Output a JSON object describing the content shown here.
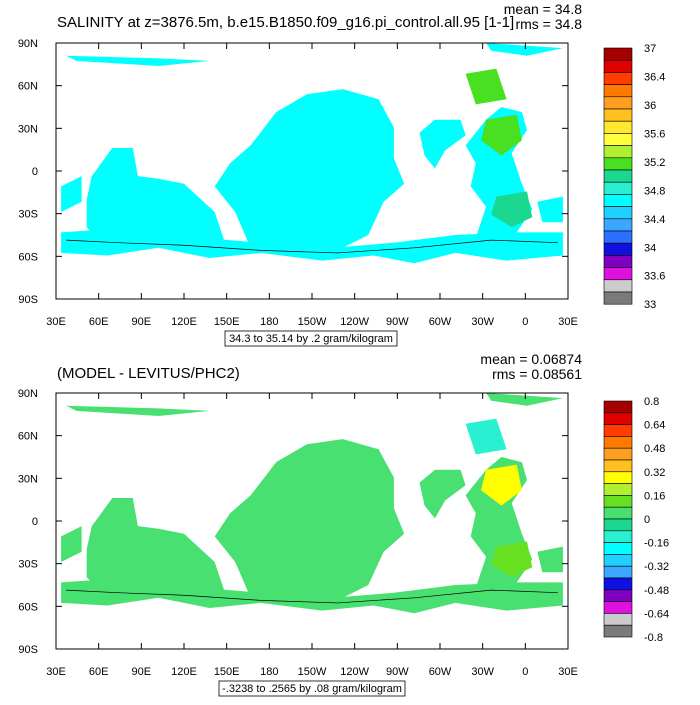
{
  "chart_data": [
    {
      "type": "heatmap",
      "title": "SALINITY at z=3876.5m, b.e15.B1850.f09_g16.pi_control.all.95 [1-1]",
      "stats": {
        "mean": "mean = 34.8",
        "rms": "rms = 34.8"
      },
      "x_ticks": [
        "30E",
        "60E",
        "90E",
        "120E",
        "150E",
        "180",
        "150W",
        "120W",
        "90W",
        "60W",
        "30W",
        "0",
        "30E"
      ],
      "y_ticks": [
        "90N",
        "60N",
        "30N",
        "0",
        "30S",
        "60S",
        "90S"
      ],
      "colorbar": {
        "labels": [
          "37",
          "36.4",
          "36",
          "35.6",
          "35.2",
          "34.8",
          "34.4",
          "34",
          "33.6",
          "33"
        ],
        "colors": [
          "#a50000",
          "#e00000",
          "#ff3d00",
          "#ff7a00",
          "#ff9f20",
          "#ffc020",
          "#ffe830",
          "#ffff40",
          "#b0f030",
          "#48e020",
          "#1ad890",
          "#28f0d0",
          "#00ffff",
          "#20d0ff",
          "#3aa8ff",
          "#2a70ff",
          "#1010e0",
          "#8000c0",
          "#e010e0",
          "#cccccc",
          "#7a7a7a"
        ]
      },
      "range_note": "34.3 to 35.14 by .2 gram/kilogram",
      "dominant_value_color": "#00ffff",
      "accent_colors": [
        "#48e020",
        "#1ad890"
      ]
    },
    {
      "type": "heatmap",
      "title": "(MODEL - LEVITUS/PHC2)",
      "stats": {
        "mean": "mean = 0.06874",
        "rms": "rms = 0.08561"
      },
      "x_ticks": [
        "30E",
        "60E",
        "90E",
        "120E",
        "150E",
        "180",
        "150W",
        "120W",
        "90W",
        "60W",
        "30W",
        "0",
        "30E"
      ],
      "y_ticks": [
        "90N",
        "60N",
        "30N",
        "0",
        "30S",
        "60S",
        "90S"
      ],
      "colorbar": {
        "labels": [
          "0.8",
          "0.64",
          "0.48",
          "0.32",
          "0.16",
          "0",
          "-0.16",
          "-0.32",
          "-0.48",
          "-0.64",
          "-0.8"
        ],
        "colors": [
          "#a50000",
          "#e00000",
          "#ff3d00",
          "#ff7a00",
          "#ff9f20",
          "#ffc020",
          "#ffff00",
          "#b0f030",
          "#66e020",
          "#48e070",
          "#1ad890",
          "#28f0d0",
          "#00ffff",
          "#20d0ff",
          "#3aa8ff",
          "#1010e0",
          "#8000c0",
          "#e010e0",
          "#cccccc",
          "#7a7a7a"
        ]
      },
      "range_note": "-.3238 to .2565 by .08 gram/kilogram",
      "dominant_value_color": "#48e070",
      "accent_colors": [
        "#ffff00",
        "#66e020",
        "#28f0d0"
      ]
    }
  ]
}
